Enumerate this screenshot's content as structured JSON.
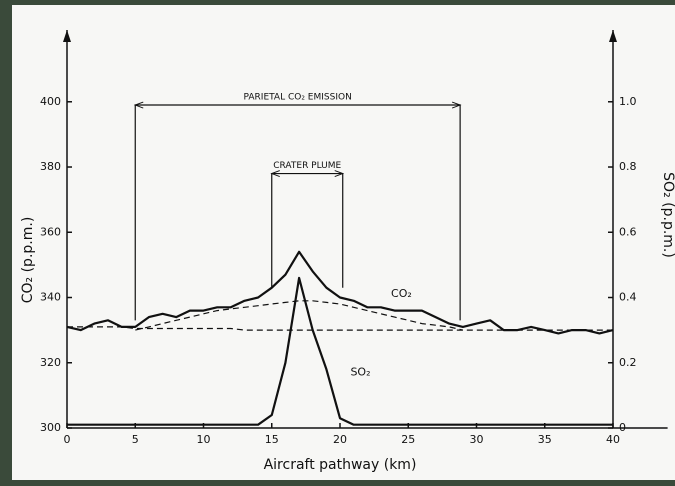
{
  "chart_data": {
    "type": "line",
    "xlabel": "Aircraft pathway (km)",
    "ylabel": "CO₂ (p.p.m.)",
    "y2label": "SO₂ (p.p.m.)",
    "x": [
      0,
      1,
      2,
      3,
      4,
      5,
      6,
      7,
      8,
      9,
      10,
      11,
      12,
      13,
      14,
      15,
      16,
      17,
      18,
      19,
      20,
      21,
      22,
      23,
      24,
      25,
      26,
      27,
      28,
      29,
      30,
      31,
      32,
      33,
      34,
      35,
      36,
      37,
      38,
      39,
      40
    ],
    "series": [
      {
        "name": "CO₂",
        "color": "#111111",
        "values": [
          331,
          330,
          332,
          333,
          331,
          331,
          334,
          335,
          334,
          336,
          336,
          337,
          337,
          339,
          340,
          343,
          347,
          354,
          348,
          343,
          340,
          339,
          337,
          337,
          336,
          336,
          336,
          334,
          332,
          331,
          332,
          333,
          330,
          330,
          331,
          330,
          329,
          330,
          330,
          329,
          330
        ]
      },
      {
        "name": "SO₂",
        "color": "#111111",
        "axis": "y2",
        "values": [
          0.01,
          0.01,
          0.01,
          0.01,
          0.01,
          0.01,
          0.01,
          0.01,
          0.01,
          0.01,
          0.01,
          0.01,
          0.01,
          0.01,
          0.01,
          0.04,
          0.2,
          0.46,
          0.3,
          0.18,
          0.03,
          0.01,
          0.01,
          0.01,
          0.01,
          0.01,
          0.01,
          0.01,
          0.01,
          0.01,
          0.01,
          0.01,
          0.01,
          0.01,
          0.01,
          0.01,
          0.01,
          0.01,
          0.01,
          0.01,
          0.01
        ]
      },
      {
        "color": "#111111",
        "dash": true,
        "values": [
          331,
          331,
          331,
          331,
          331,
          330.5,
          330.5,
          330.5,
          330.5,
          330.5,
          330.5,
          330.5,
          330.5,
          330,
          330,
          330,
          330,
          330,
          330,
          330,
          330,
          330,
          330,
          330,
          330,
          330,
          330,
          330,
          330,
          330,
          330,
          330,
          330,
          330,
          330,
          330,
          330,
          330,
          330,
          330,
          330
        ]
      },
      {
        "color": "#111111",
        "dash": true,
        "values": [
          null,
          null,
          null,
          null,
          null,
          330,
          331,
          332,
          333,
          334,
          335,
          336,
          336.5,
          337,
          337.5,
          338,
          338.5,
          339,
          339,
          338.5,
          338,
          337,
          336,
          335,
          334,
          333,
          332,
          331.5,
          331,
          330,
          null,
          null,
          null,
          null,
          null,
          null,
          null,
          null,
          null,
          null,
          null
        ]
      }
    ],
    "annotations": [
      {
        "text": "PARIETAL CO₂ EMISSION",
        "x": [
          5,
          28.8
        ],
        "y": 399,
        "bottom": 333
      },
      {
        "text": "CRATER PLUME",
        "x": [
          15,
          20.2
        ],
        "y": 378,
        "bottom": 343
      }
    ],
    "curve_labels": [
      {
        "text": "CO₂",
        "x": 24.5,
        "y": 341
      },
      {
        "text": "SO₂",
        "x": 21.5,
        "y": 317
      }
    ],
    "xlim": [
      0,
      44
    ],
    "ylim": [
      300,
      422
    ],
    "y2lim": [
      0,
      1.22
    ],
    "xticks": [
      0,
      5,
      10,
      15,
      20,
      25,
      30,
      35,
      40
    ],
    "yticks": [
      300,
      320,
      340,
      360,
      380,
      400
    ],
    "y2ticks": [
      0,
      0.2,
      0.4,
      0.6,
      0.8,
      {
        "value": 1,
        "label": "1.0"
      }
    ],
    "grid": false
  }
}
